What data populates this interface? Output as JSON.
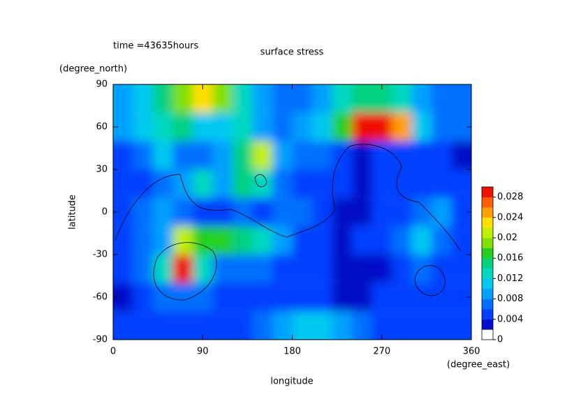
{
  "chart_data": {
    "type": "heatmap",
    "title": "surface stress",
    "subtitle": "time =43635hours",
    "x_label": "longitude",
    "x_unit": "(degree_east)",
    "y_label": "latitude",
    "y_unit": "(degree_north)",
    "xlim": [
      0,
      360
    ],
    "xticks": [
      0,
      90,
      180,
      270,
      360
    ],
    "ylim": [
      -90,
      90
    ],
    "yticks": [
      90,
      60,
      30,
      0,
      -30,
      -60,
      -90
    ],
    "x": [
      10,
      30,
      50,
      70,
      90,
      110,
      130,
      150,
      170,
      190,
      210,
      230,
      250,
      270,
      290,
      310,
      330,
      350
    ],
    "y": [
      80,
      60,
      40,
      20,
      0,
      -20,
      -40,
      -60,
      -80
    ],
    "z": [
      [
        0.008,
        0.01,
        0.014,
        0.018,
        0.022,
        0.018,
        0.012,
        0.008,
        0.006,
        0.006,
        0.008,
        0.012,
        0.014,
        0.014,
        0.012,
        0.008,
        0.006,
        0.006
      ],
      [
        0.008,
        0.01,
        0.012,
        0.014,
        0.01,
        0.01,
        0.012,
        0.008,
        0.006,
        0.008,
        0.01,
        0.016,
        0.03,
        0.03,
        0.024,
        0.01,
        0.006,
        0.006
      ],
      [
        0.004,
        0.006,
        0.01,
        0.006,
        0.006,
        0.008,
        0.014,
        0.02,
        0.008,
        0.006,
        0.006,
        0.004,
        0.002,
        0.004,
        0.004,
        0.004,
        0.004,
        0.002
      ],
      [
        0.004,
        0.004,
        0.006,
        0.008,
        0.012,
        0.008,
        0.014,
        0.012,
        0.006,
        0.004,
        0.004,
        0.004,
        0.002,
        0.004,
        0.004,
        0.004,
        0.004,
        0.004
      ],
      [
        0.004,
        0.006,
        0.008,
        0.006,
        0.004,
        0.004,
        0.006,
        0.004,
        0.006,
        0.006,
        0.004,
        0.002,
        0.002,
        0.004,
        0.004,
        0.006,
        0.008,
        0.004
      ],
      [
        0.004,
        0.006,
        0.008,
        0.02,
        0.016,
        0.016,
        0.014,
        0.012,
        0.008,
        0.004,
        0.004,
        0.002,
        0.004,
        0.004,
        0.006,
        0.01,
        0.006,
        0.004
      ],
      [
        0.004,
        0.006,
        0.012,
        0.03,
        0.012,
        0.006,
        0.006,
        0.006,
        0.004,
        0.004,
        0.004,
        0.002,
        0.002,
        0.002,
        0.004,
        0.006,
        0.004,
        0.004
      ],
      [
        0.002,
        0.004,
        0.006,
        0.006,
        0.006,
        0.004,
        0.004,
        0.004,
        0.004,
        0.004,
        0.004,
        0.002,
        0.002,
        0.004,
        0.004,
        0.004,
        0.004,
        0.004
      ],
      [
        0.004,
        0.004,
        0.004,
        0.004,
        0.004,
        0.004,
        0.004,
        0.006,
        0.008,
        0.01,
        0.01,
        0.008,
        0.006,
        0.004,
        0.004,
        0.004,
        0.004,
        0.004
      ]
    ],
    "zlim": [
      0,
      0.03
    ],
    "colorbar_ticks": [
      0,
      0.004,
      0.008,
      0.012,
      0.016,
      0.02,
      0.024,
      0.028
    ],
    "colors": [
      "#ffffff",
      "#0010c8",
      "#0040ff",
      "#0070ff",
      "#00a0ff",
      "#00c8f0",
      "#00d8c0",
      "#00d080",
      "#20d020",
      "#80e000",
      "#c0f000",
      "#ffe000",
      "#ffa000",
      "#ff6000",
      "#f01000"
    ]
  }
}
